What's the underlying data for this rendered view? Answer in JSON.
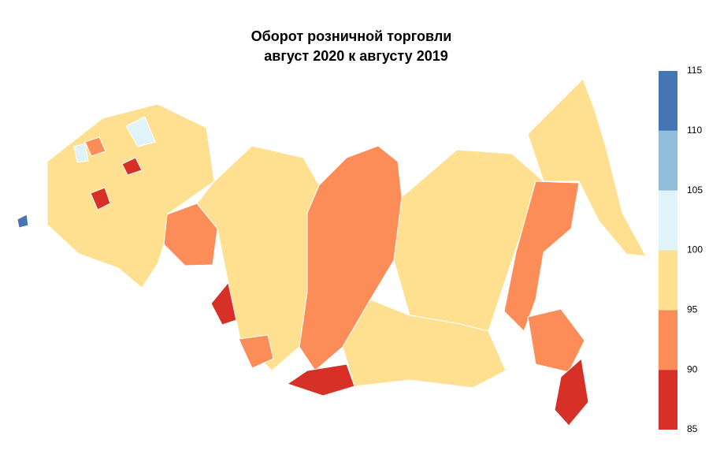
{
  "chart_data": {
    "type": "choropleth",
    "title": "Оборот розничной торговли",
    "subtitle": "август 2020 к августу 2019",
    "legend": {
      "ticks": [
        85,
        90,
        95,
        100,
        105,
        110,
        115
      ],
      "colors": [
        "#d73027",
        "#fc8d59",
        "#fee090",
        "#e0f3f8",
        "#91bfdb",
        "#4575b4"
      ]
    },
    "regions": [
      {
        "value": 97
      },
      {
        "value": 97
      },
      {
        "value": 92
      },
      {
        "value": 92
      },
      {
        "value": 92
      },
      {
        "value": 88
      },
      {
        "value": 88
      },
      {
        "value": 88
      },
      {
        "value": 92
      },
      {
        "value": 97
      },
      {
        "value": 97
      },
      {
        "value": 97
      },
      {
        "value": 102
      },
      {
        "value": 88
      },
      {
        "value": 92
      },
      {
        "value": 112
      },
      {
        "value": 92
      },
      {
        "value": 88
      },
      {
        "value": 102
      }
    ]
  }
}
